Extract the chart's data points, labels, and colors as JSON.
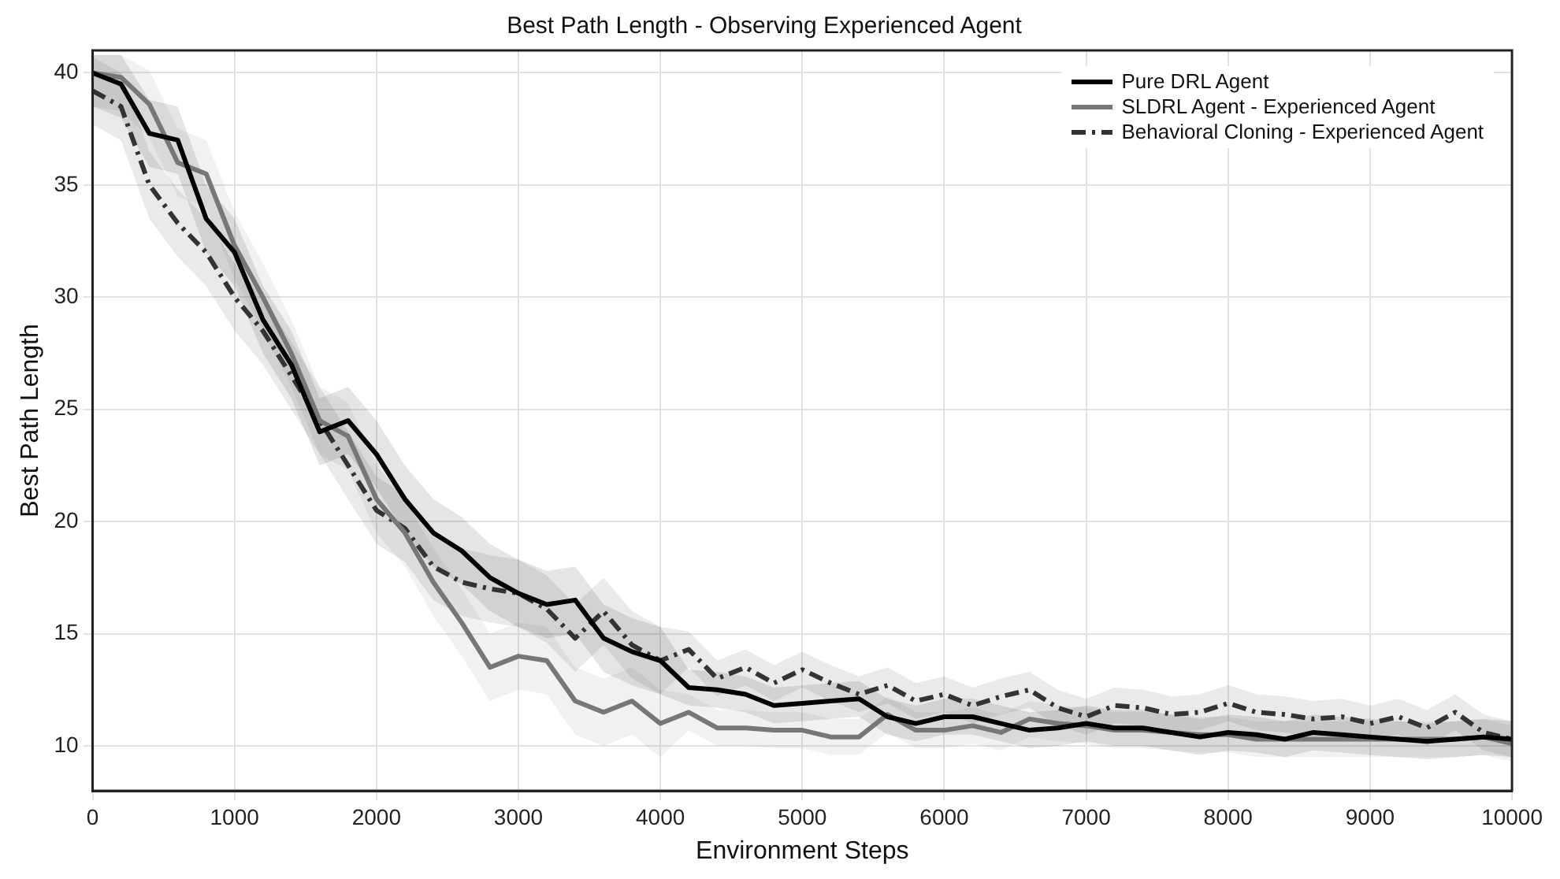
{
  "chart_data": {
    "type": "line",
    "title": "Best Path Length - Observing Experienced Agent",
    "xlabel": "Environment Steps",
    "ylabel": "Best Path Length",
    "x": [
      0,
      200,
      400,
      600,
      800,
      1000,
      1200,
      1400,
      1600,
      1800,
      2000,
      2200,
      2400,
      2600,
      2800,
      3000,
      3200,
      3400,
      3600,
      3800,
      4000,
      4200,
      4400,
      4600,
      4800,
      5000,
      5200,
      5400,
      5600,
      5800,
      6000,
      6200,
      6400,
      6600,
      6800,
      7000,
      7200,
      7400,
      7600,
      7800,
      8000,
      8200,
      8400,
      8600,
      8800,
      9000,
      9200,
      9400,
      9600,
      9800,
      10000
    ],
    "xlim": [
      0,
      10000
    ],
    "xticks": [
      0,
      1000,
      2000,
      3000,
      4000,
      5000,
      6000,
      7000,
      8000,
      9000,
      10000
    ],
    "ylim": [
      8,
      41
    ],
    "yticks": [
      10,
      15,
      20,
      25,
      30,
      35,
      40
    ],
    "grid": true,
    "legend": "top right",
    "marker": "none",
    "series": [
      {
        "name": "Pure DRL Agent",
        "color": "#000000",
        "line_style": "solid",
        "values": [
          40,
          39.5,
          37.3,
          37,
          33.5,
          32,
          29,
          27,
          24,
          24.5,
          23,
          21,
          19.5,
          18.7,
          17.5,
          16.8,
          16.3,
          16.5,
          14.8,
          14.2,
          13.8,
          12.6,
          12.5,
          12.3,
          11.8,
          11.9,
          12.0,
          12.1,
          11.3,
          11.0,
          11.3,
          11.3,
          11.0,
          10.7,
          10.8,
          11.0,
          10.8,
          10.8,
          10.6,
          10.4,
          10.6,
          10.5,
          10.3,
          10.6,
          10.5,
          10.4,
          10.3,
          10.2,
          10.3,
          10.4,
          10.3
        ],
        "lower": [
          38.5,
          38,
          35.8,
          35.5,
          32,
          30.5,
          27.5,
          25.5,
          22.5,
          23,
          21.5,
          19.5,
          18,
          17.2,
          16,
          15.3,
          14.8,
          15,
          13.3,
          12.7,
          12.3,
          11.8,
          11.7,
          11.5,
          11,
          11.1,
          11.2,
          11.3,
          10.5,
          10.2,
          10.5,
          10.5,
          10.2,
          9.9,
          10,
          10.2,
          10,
          10,
          9.8,
          9.6,
          9.8,
          9.7,
          9.5,
          9.8,
          9.7,
          9.6,
          9.5,
          9.4,
          9.5,
          9.6,
          9.5
        ],
        "upper": [
          40.8,
          40.8,
          38.8,
          38.5,
          35,
          33.5,
          30.5,
          28.5,
          25.5,
          26,
          24.5,
          22.5,
          21,
          20.2,
          19,
          18.3,
          17.8,
          18,
          16.3,
          15.7,
          15.3,
          13.4,
          13.3,
          13.1,
          12.6,
          12.7,
          12.8,
          12.9,
          12.1,
          11.8,
          12.1,
          12.1,
          11.8,
          11.5,
          11.6,
          11.8,
          11.6,
          11.6,
          11.4,
          11.2,
          11.4,
          11.3,
          11.1,
          11.4,
          11.3,
          11.2,
          11.1,
          11,
          11.1,
          11.2,
          11.1
        ]
      },
      {
        "name": "SLDRL Agent - Experienced Agent",
        "color": "#777777",
        "line_style": "solid",
        "values": [
          40,
          39.8,
          38.6,
          36,
          35.5,
          32.3,
          30,
          27.5,
          24.5,
          23.8,
          21,
          19.5,
          17.3,
          15.5,
          13.5,
          14,
          13.8,
          12,
          11.5,
          12,
          11,
          11.5,
          10.8,
          10.8,
          10.7,
          10.7,
          10.4,
          10.4,
          11.4,
          10.7,
          10.7,
          10.9,
          10.6,
          11.2,
          11,
          10.9,
          10.7,
          10.7,
          10.6,
          10.5,
          10.5,
          10.3,
          10.3,
          10.3,
          10.3,
          10.3,
          10.3,
          10.3,
          10.3,
          10.4,
          10.1
        ],
        "lower": [
          38.5,
          38.3,
          37.1,
          34.5,
          34,
          30.8,
          28.5,
          26,
          23,
          22.3,
          19.5,
          18,
          15.8,
          14,
          12,
          12.5,
          12.3,
          10.5,
          10,
          10.5,
          9.5,
          10.7,
          10,
          10,
          9.9,
          9.9,
          9.6,
          9.6,
          10.6,
          9.9,
          9.9,
          10.1,
          9.8,
          10.4,
          10.2,
          10.1,
          9.9,
          9.9,
          9.8,
          9.7,
          9.7,
          9.5,
          9.5,
          9.5,
          9.5,
          9.5,
          9.5,
          9.5,
          9.5,
          9.6,
          9.3
        ],
        "upper": [
          40.8,
          40.8,
          40.1,
          37.5,
          37,
          33.8,
          31.5,
          29,
          26,
          25.3,
          22.5,
          21,
          18.8,
          17,
          15,
          15.5,
          15.3,
          13.5,
          13,
          13.5,
          12.5,
          12.3,
          11.6,
          11.6,
          11.5,
          11.5,
          11.2,
          11.2,
          12.2,
          11.5,
          11.5,
          11.7,
          11.4,
          12,
          11.8,
          11.7,
          11.5,
          11.5,
          11.4,
          11.3,
          11.3,
          11.1,
          11.1,
          11.1,
          11.1,
          11.1,
          11.1,
          11.1,
          11.1,
          11.2,
          10.9
        ]
      },
      {
        "name": "Behavioral Cloning - Experienced Agent",
        "color": "#333333",
        "line_style": "dashed",
        "values": [
          39.2,
          38.5,
          35,
          33.3,
          32,
          30,
          28.5,
          26.5,
          24.5,
          22.5,
          20.5,
          19.7,
          18,
          17.3,
          17,
          16.8,
          16.1,
          14.8,
          16,
          14.5,
          13.8,
          14.3,
          13,
          13.5,
          12.8,
          13.4,
          12.8,
          12.3,
          12.7,
          12,
          12.3,
          11.8,
          12.2,
          12.5,
          11.7,
          11.3,
          11.8,
          11.7,
          11.4,
          11.5,
          11.9,
          11.5,
          11.4,
          11.2,
          11.3,
          11,
          11.3,
          10.8,
          11.5,
          10.6,
          10.3
        ],
        "lower": [
          37.7,
          37,
          33.5,
          31.8,
          30.5,
          28.5,
          27,
          25,
          23,
          21,
          19,
          18.2,
          16.5,
          15.8,
          15.5,
          15.3,
          14.6,
          13.3,
          14.5,
          13,
          12.3,
          13.5,
          12.2,
          12.7,
          12,
          12.6,
          12,
          11.5,
          11.9,
          11.2,
          11.5,
          11,
          11.4,
          11.7,
          10.9,
          10.5,
          11,
          10.9,
          10.6,
          10.7,
          11.1,
          10.7,
          10.6,
          10.4,
          10.5,
          10.2,
          10.5,
          10,
          10.7,
          9.8,
          9.5
        ],
        "upper": [
          40.7,
          40,
          36.5,
          34.8,
          33.5,
          31.5,
          30,
          28,
          26,
          24,
          22,
          21.2,
          19.5,
          18.8,
          18.5,
          18.3,
          17.6,
          16.3,
          17.5,
          16,
          15.3,
          15.1,
          13.8,
          14.3,
          13.6,
          14.2,
          13.6,
          13.1,
          13.5,
          12.8,
          13.1,
          12.6,
          13,
          13.3,
          12.5,
          12.1,
          12.6,
          12.5,
          12.2,
          12.3,
          12.7,
          12.3,
          12.2,
          12,
          12.1,
          11.8,
          12.1,
          11.6,
          12.3,
          11.4,
          11.1
        ]
      }
    ]
  }
}
